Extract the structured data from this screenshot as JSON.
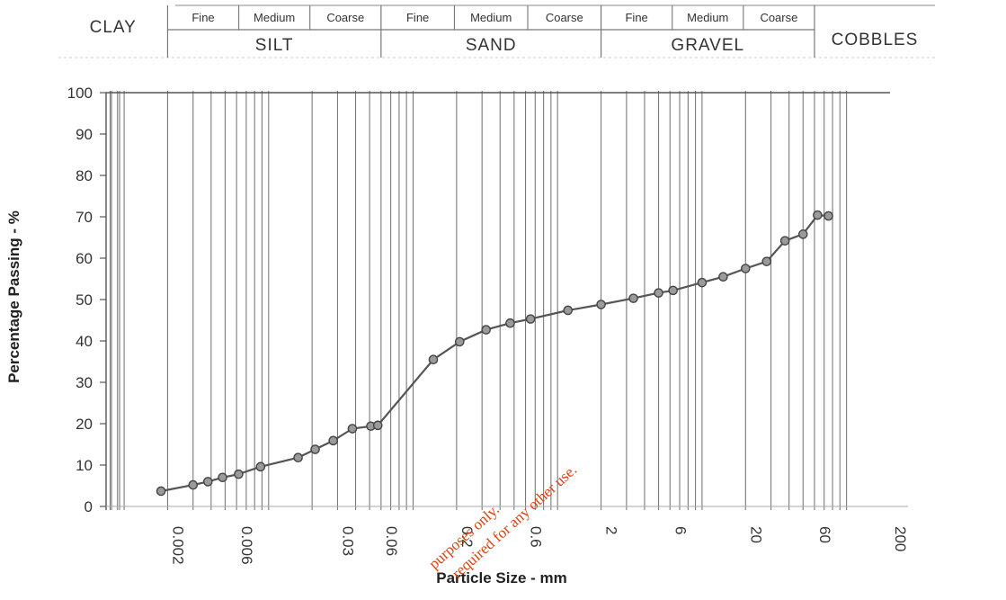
{
  "classification": {
    "groups": [
      {
        "label": "CLAY",
        "from": 0.0002,
        "to": 0.002,
        "subs": []
      },
      {
        "label": "SILT",
        "from": 0.002,
        "to": 0.06,
        "subs": [
          "Fine",
          "Medium",
          "Coarse"
        ]
      },
      {
        "label": "SAND",
        "from": 0.06,
        "to": 2,
        "subs": [
          "Fine",
          "Medium",
          "Coarse"
        ]
      },
      {
        "label": "GRAVEL",
        "from": 2,
        "to": 60,
        "subs": [
          "Fine",
          "Medium",
          "Coarse"
        ]
      },
      {
        "label": "COBBLES",
        "from": 60,
        "to": 600,
        "subs": []
      }
    ]
  },
  "watermark": {
    "line1": "purposes only.",
    "line2": "required for any other use."
  },
  "chart_data": {
    "type": "line",
    "xscale": "log",
    "xlabel": "Particle Size  -  mm",
    "ylabel": "Percentage Passing  -  %",
    "xlim": [
      0.00075,
      200
    ],
    "ylim": [
      0,
      100
    ],
    "grid": true,
    "x_ticks": [
      {
        "value": 0.002,
        "label": "0.002"
      },
      {
        "value": 0.006,
        "label": "0.006"
      },
      {
        "value": 0.03,
        "label": "0.03"
      },
      {
        "value": 0.06,
        "label": "0.06"
      },
      {
        "value": 0.2,
        "label": "0.2"
      },
      {
        "value": 0.6,
        "label": "0.6"
      },
      {
        "value": 2,
        "label": "2"
      },
      {
        "value": 6,
        "label": "6"
      },
      {
        "value": 20,
        "label": "20"
      },
      {
        "value": 60,
        "label": "60"
      },
      {
        "value": 200,
        "label": "200"
      }
    ],
    "y_ticks": [
      {
        "value": 0,
        "label": "0"
      },
      {
        "value": 10,
        "label": "10"
      },
      {
        "value": 20,
        "label": "20"
      },
      {
        "value": 30,
        "label": "30"
      },
      {
        "value": 40,
        "label": "40"
      },
      {
        "value": 50,
        "label": "50"
      },
      {
        "value": 60,
        "label": "60"
      },
      {
        "value": 70,
        "label": "70"
      },
      {
        "value": 80,
        "label": "80"
      },
      {
        "value": 90,
        "label": "90"
      },
      {
        "value": 100,
        "label": "100"
      }
    ],
    "series": [
      {
        "x": [
          0.0018,
          0.003,
          0.0038,
          0.0048,
          0.0062,
          0.0088,
          0.016,
          0.021,
          0.028,
          0.038,
          0.051,
          0.057,
          0.138,
          0.21,
          0.32,
          0.47,
          0.65,
          1.18,
          2.0,
          3.35,
          5.0,
          6.3,
          10,
          14,
          20,
          28,
          37.5,
          50,
          63,
          75
        ],
        "y": [
          3.7,
          5.2,
          6.0,
          7.0,
          7.8,
          9.6,
          11.8,
          13.8,
          15.9,
          18.8,
          19.4,
          19.6,
          35.5,
          39.8,
          42.7,
          44.3,
          45.3,
          47.4,
          48.8,
          50.3,
          51.6,
          52.2,
          54.1,
          55.5,
          57.5,
          59.2,
          64.2,
          65.8,
          70.4,
          70.2
        ]
      }
    ]
  }
}
